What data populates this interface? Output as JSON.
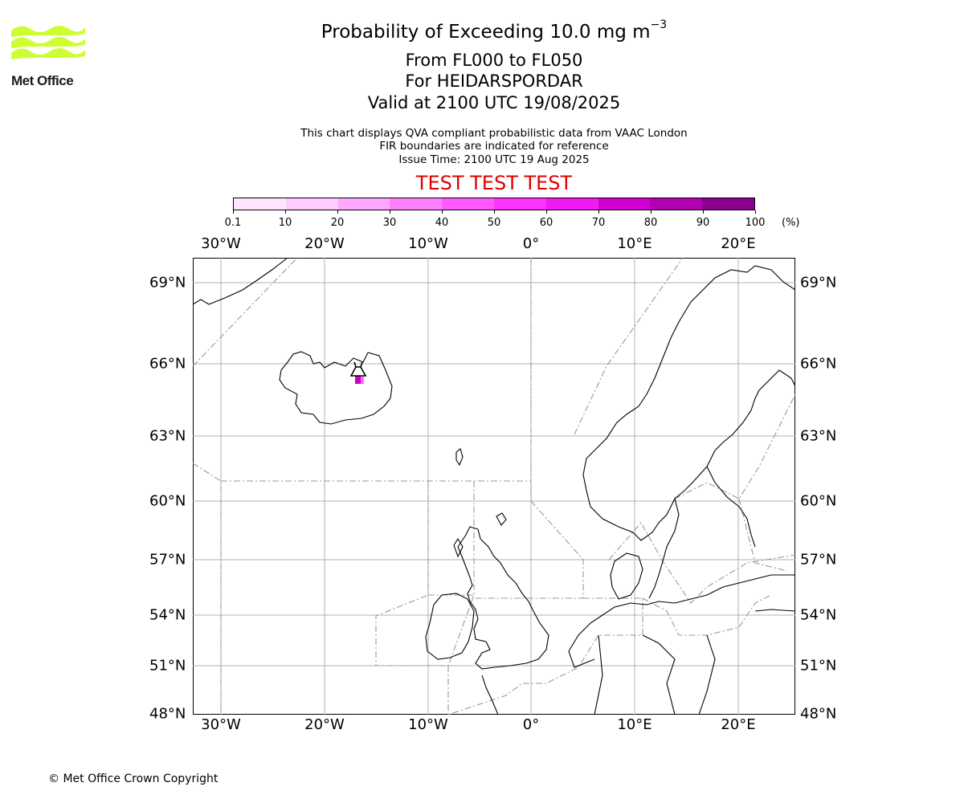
{
  "logo": {
    "text": "Met Office",
    "color": "#ccff33"
  },
  "title": {
    "main": "Probability of Exceeding 10.0 mg m",
    "superscript": "−3"
  },
  "subtitle": {
    "levels": "From FL000 to FL050",
    "volcano": "For HEIDARSPORDAR",
    "valid": "Valid at 2100 UTC 19/08/2025"
  },
  "notes": {
    "line1": "This chart displays QVA compliant probabilistic data from VAAC London",
    "line2": "FIR boundaries are indicated for reference",
    "line3": "Issue Time: 2100 UTC 19 Aug 2025"
  },
  "test_banner": "TEST TEST TEST",
  "colorbar": {
    "ticks": [
      "0.1",
      "10",
      "20",
      "30",
      "40",
      "50",
      "60",
      "70",
      "80",
      "90",
      "100"
    ],
    "unit": "(%)",
    "colors": [
      "#ffe6ff",
      "#ffccff",
      "#ffa6ff",
      "#ff80ff",
      "#ff59ff",
      "#ff33ff",
      "#f21af2",
      "#d100d1",
      "#b300b3",
      "#8c008c",
      "#660066"
    ]
  },
  "map": {
    "lon_labels": [
      "30°W",
      "20°W",
      "10°W",
      "0°",
      "10°E",
      "20°E"
    ],
    "lat_labels": [
      "69°N",
      "66°N",
      "63°N",
      "60°N",
      "57°N",
      "54°N",
      "51°N",
      "48°N"
    ],
    "volcano_name": "HEIDARSPORDAR",
    "ash_probability_colors": [
      "#cc00cc",
      "#ff66ff"
    ]
  },
  "copyright": "© Met Office Crown Copyright"
}
